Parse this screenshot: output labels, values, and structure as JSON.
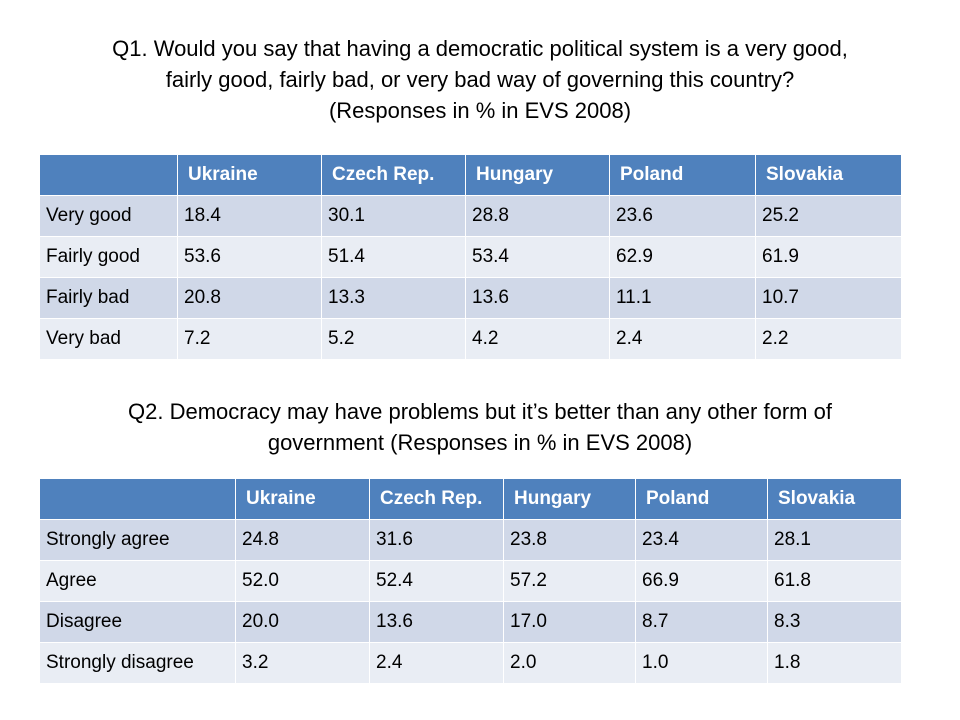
{
  "q1": {
    "title_lines": [
      "Q1. Would you say that having a democratic political system is a very good,",
      "fairly good, fairly bad, or very bad way of governing this country?",
      "(Responses in % in EVS 2008)"
    ],
    "columns": [
      "",
      "Ukraine",
      "Czech Rep.",
      "Hungary",
      "Poland",
      "Slovakia"
    ],
    "rows": [
      [
        "Very good",
        "18.4",
        "30.1",
        "28.8",
        "23.6",
        "25.2"
      ],
      [
        "Fairly good",
        "53.6",
        "51.4",
        "53.4",
        "62.9",
        "61.9"
      ],
      [
        "Fairly bad",
        "20.8",
        "13.3",
        "13.6",
        "11.1",
        "10.7"
      ],
      [
        "Very bad",
        "7.2",
        "5.2",
        "4.2",
        "2.4",
        "2.2"
      ]
    ]
  },
  "q2": {
    "title_lines": [
      "Q2. Democracy may have problems but it’s better than any other form of",
      "government  (Responses in % in EVS 2008)"
    ],
    "columns": [
      "",
      "Ukraine",
      "Czech Rep.",
      "Hungary",
      "Poland",
      "Slovakia"
    ],
    "rows": [
      [
        "Strongly agree",
        "24.8",
        "31.6",
        "23.8",
        "23.4",
        "28.1"
      ],
      [
        "Agree",
        "52.0",
        "52.4",
        "57.2",
        "66.9",
        "61.8"
      ],
      [
        "Disagree",
        "20.0",
        "13.6",
        "17.0",
        "8.7",
        "8.3"
      ],
      [
        "Strongly disagree",
        "3.2",
        "2.4",
        "2.0",
        "1.0",
        "1.8"
      ]
    ]
  },
  "colors": {
    "header_bg": "#4f81bd",
    "row_odd_bg": "#d0d8e8",
    "row_even_bg": "#e9edf4"
  }
}
